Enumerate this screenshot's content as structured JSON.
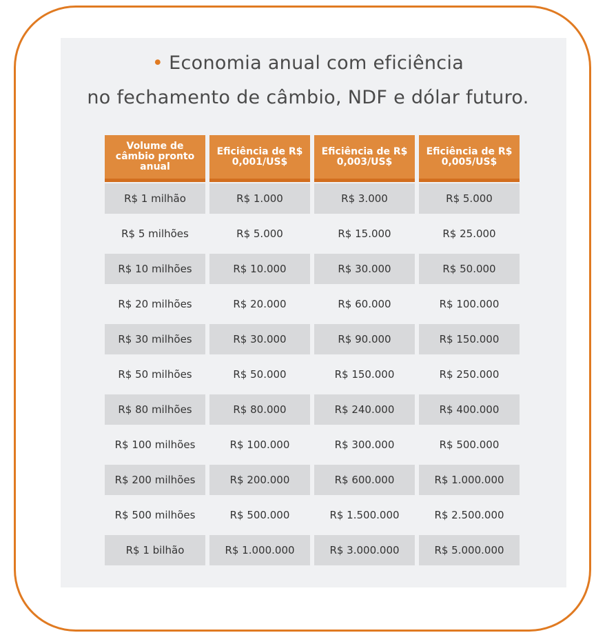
{
  "title": {
    "bullet": "•",
    "line1": "Economia anual com eficiência",
    "line2": "no fechamento de câmbio, NDF e dólar futuro."
  },
  "colors": {
    "accent": "#E07A21",
    "header_bg": "#E08A3C",
    "row_shade": "#D8D9DB",
    "panel_bg": "#F0F1F3"
  },
  "chart_data": {
    "type": "table",
    "title": "Economia anual com eficiência no fechamento de câmbio, NDF e dólar futuro.",
    "columns": [
      "Volume de câmbio pronto anual",
      "Eficiência de R$ 0,001/US$",
      "Eficiência de R$ 0,003/US$",
      "Eficiência de R$ 0,005/US$"
    ],
    "rows": [
      [
        "R$ 1 milhão",
        "R$ 1.000",
        "R$ 3.000",
        "R$ 5.000"
      ],
      [
        "R$ 5 milhões",
        "R$ 5.000",
        "R$ 15.000",
        "R$ 25.000"
      ],
      [
        "R$ 10 milhões",
        "R$ 10.000",
        "R$ 30.000",
        "R$ 50.000"
      ],
      [
        "R$ 20 milhões",
        "R$ 20.000",
        "R$ 60.000",
        "R$ 100.000"
      ],
      [
        "R$ 30 milhões",
        "R$ 30.000",
        "R$ 90.000",
        "R$ 150.000"
      ],
      [
        "R$ 50 milhões",
        "R$ 50.000",
        "R$ 150.000",
        "R$ 250.000"
      ],
      [
        "R$ 80 milhões",
        "R$ 80.000",
        "R$ 240.000",
        "R$ 400.000"
      ],
      [
        "R$ 100 milhões",
        "R$ 100.000",
        "R$ 300.000",
        "R$ 500.000"
      ],
      [
        "R$ 200 milhões",
        "R$ 200.000",
        "R$ 600.000",
        "R$ 1.000.000"
      ],
      [
        "R$ 500 milhões",
        "R$ 500.000",
        "R$ 1.500.000",
        "R$ 2.500.000"
      ],
      [
        "R$ 1 bilhão",
        "R$ 1.000.000",
        "R$ 3.000.000",
        "R$ 5.000.000"
      ]
    ]
  }
}
